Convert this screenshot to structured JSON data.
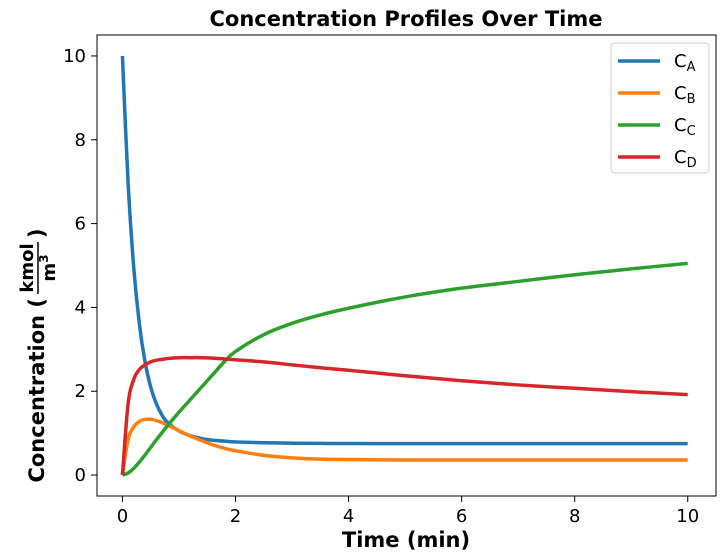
{
  "chart_data": {
    "type": "line",
    "title": "Concentration Profiles Over Time",
    "xlabel": "Time (min)",
    "ylabel": {
      "prefix": "Concentration (",
      "numerator": "kmol",
      "denominator": "m",
      "denominator_exponent": "3",
      "suffix": ")"
    },
    "xlim": [
      -0.45,
      10.5
    ],
    "ylim": [
      -0.5,
      10.5
    ],
    "xticks": [
      0,
      2,
      4,
      6,
      8,
      10
    ],
    "yticks": [
      0,
      2,
      4,
      6,
      8,
      10
    ],
    "grid": false,
    "legend_position": "top-right",
    "x": [
      0,
      0.1,
      0.2,
      0.3,
      0.4,
      0.5,
      0.6,
      0.7,
      0.8,
      1.0,
      1.2,
      1.4,
      1.6,
      1.8,
      2.0,
      2.5,
      3.0,
      3.5,
      4.0,
      5.0,
      6.0,
      7.0,
      8.0,
      9.0,
      10.0
    ],
    "series": [
      {
        "name": "C",
        "subscript": "A",
        "color": "#1f77b4",
        "values": [
          10.0,
          6.97,
          4.95,
          3.6,
          2.7,
          2.1,
          1.7,
          1.43,
          1.25,
          1.05,
          0.94,
          0.87,
          0.83,
          0.81,
          0.79,
          0.77,
          0.76,
          0.755,
          0.752,
          0.75,
          0.75,
          0.75,
          0.75,
          0.75,
          0.75
        ]
      },
      {
        "name": "C",
        "subscript": "B",
        "color": "#ff7f0e",
        "values": [
          0.0,
          0.85,
          1.15,
          1.28,
          1.33,
          1.33,
          1.3,
          1.25,
          1.19,
          1.06,
          0.93,
          0.82,
          0.72,
          0.64,
          0.58,
          0.47,
          0.41,
          0.38,
          0.37,
          0.36,
          0.36,
          0.36,
          0.36,
          0.36,
          0.36
        ]
      },
      {
        "name": "C",
        "subscript": "C",
        "color": "#2ca02c",
        "values": [
          0.0,
          0.05,
          0.16,
          0.31,
          0.48,
          0.66,
          0.84,
          1.01,
          1.18,
          1.5,
          1.8,
          2.1,
          2.4,
          2.7,
          2.95,
          3.35,
          3.62,
          3.82,
          3.98,
          4.25,
          4.46,
          4.62,
          4.78,
          4.92,
          5.05
        ]
      },
      {
        "name": "C",
        "subscript": "D",
        "color": "#d62728",
        "values": [
          0.0,
          1.7,
          2.28,
          2.52,
          2.63,
          2.7,
          2.74,
          2.76,
          2.78,
          2.8,
          2.8,
          2.8,
          2.79,
          2.77,
          2.75,
          2.7,
          2.63,
          2.56,
          2.5,
          2.37,
          2.25,
          2.15,
          2.07,
          1.99,
          1.92
        ]
      }
    ]
  }
}
